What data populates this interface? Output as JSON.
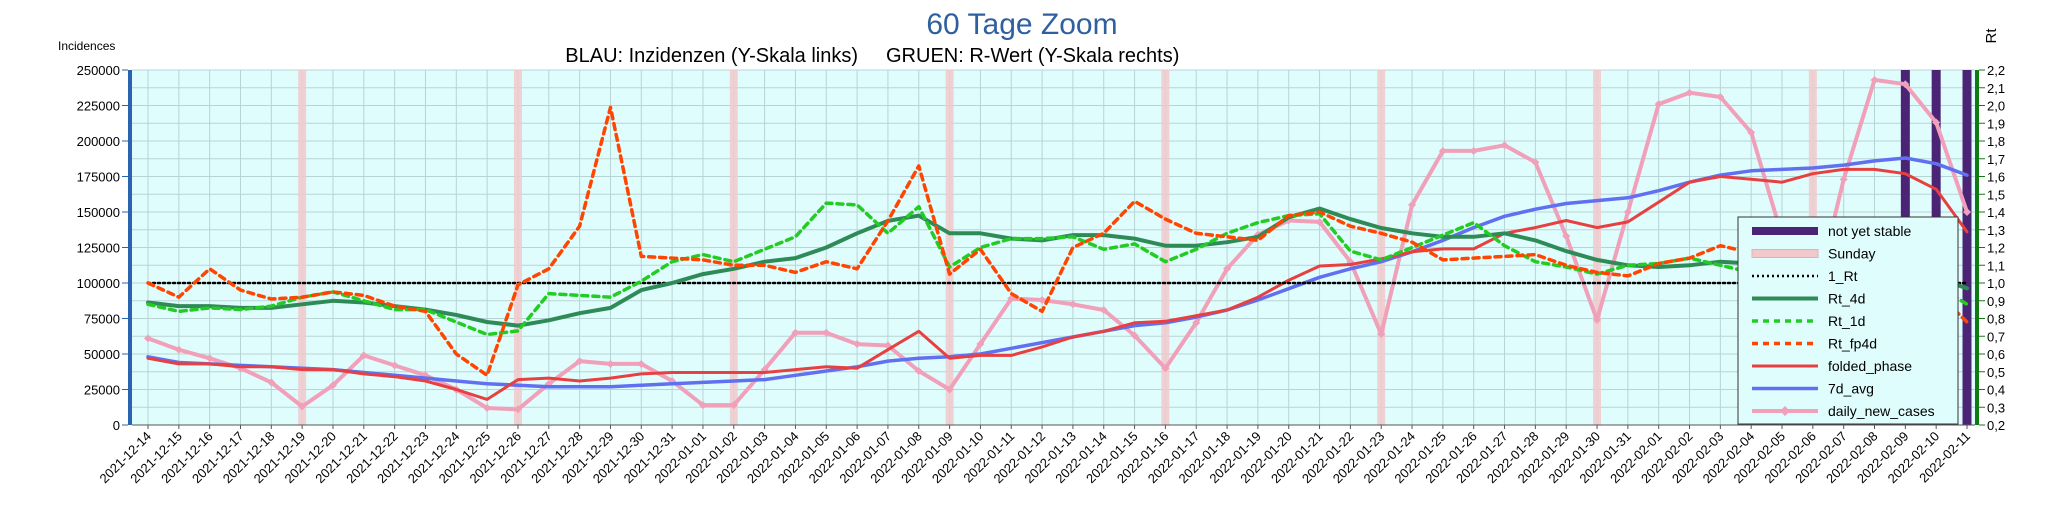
{
  "chart_data": {
    "type": "line",
    "title": "60 Tage Zoom",
    "subtitle_left": "BLAU: Inzidenzen (Y-Skala links)",
    "subtitle_right": "GRUEN: R-Wert (Y-Skala rechts)",
    "ylabel_left": "Incidences",
    "ylabel_right": "Rt",
    "ylim_left": [
      0,
      250000
    ],
    "ylim_right": [
      0.2,
      2.2
    ],
    "yticks_left": [
      "0",
      "25000",
      "50000",
      "75000",
      "100000",
      "125000",
      "150000",
      "175000",
      "200000",
      "225000",
      "250000"
    ],
    "yticks_right": [
      "0,2",
      "0,3",
      "0,4",
      "0,5",
      "0,6",
      "0,7",
      "0,8",
      "0,9",
      "1,0",
      "1,1",
      "1,2",
      "1,3",
      "1,4",
      "1,5",
      "1,6",
      "1,7",
      "1,8",
      "1,9",
      "2,0",
      "2,1",
      "2,2"
    ],
    "x": [
      "2021-12-14",
      "2021-12-15",
      "2021-12-16",
      "2021-12-17",
      "2021-12-18",
      "2021-12-19",
      "2021-12-20",
      "2021-12-21",
      "2021-12-22",
      "2021-12-23",
      "2021-12-24",
      "2021-12-25",
      "2021-12-26",
      "2021-12-27",
      "2021-12-28",
      "2021-12-29",
      "2021-12-30",
      "2021-12-31",
      "2022-01-01",
      "2022-01-02",
      "2022-01-03",
      "2022-01-04",
      "2022-01-05",
      "2022-01-06",
      "2022-01-07",
      "2022-01-08",
      "2022-01-09",
      "2022-01-10",
      "2022-01-11",
      "2022-01-12",
      "2022-01-13",
      "2022-01-14",
      "2022-01-15",
      "2022-01-16",
      "2022-01-17",
      "2022-01-18",
      "2022-01-19",
      "2022-01-20",
      "2022-01-21",
      "2022-01-22",
      "2022-01-23",
      "2022-01-24",
      "2022-01-25",
      "2022-01-26",
      "2022-01-27",
      "2022-01-28",
      "2022-01-29",
      "2022-01-30",
      "2022-01-31",
      "2022-02-01",
      "2022-02-02",
      "2022-02-03",
      "2022-02-04",
      "2022-02-05",
      "2022-02-06",
      "2022-02-07",
      "2022-02-08",
      "2022-02-09",
      "2022-02-10",
      "2022-02-11"
    ],
    "sundays": [
      "2021-12-19",
      "2021-12-26",
      "2022-01-02",
      "2022-01-09",
      "2022-01-16",
      "2022-01-23",
      "2022-01-30",
      "2022-02-06"
    ],
    "not_yet_stable": [
      "2022-02-09",
      "2022-02-10",
      "2022-02-11"
    ],
    "legend": [
      "not yet stable",
      "Sunday",
      "1_Rt",
      "Rt_4d",
      "Rt_1d",
      "Rt_fp4d",
      "folded_phase",
      "7d_avg",
      "daily_new_cases"
    ],
    "legend_position": "right",
    "grid": true,
    "series": [
      {
        "name": "daily_new_cases",
        "axis": "left",
        "color": "#f0a0b8",
        "values": [
          61000,
          53000,
          47000,
          40000,
          30000,
          13000,
          28000,
          49000,
          42000,
          35000,
          25000,
          12000,
          11000,
          29000,
          45000,
          43000,
          43000,
          31000,
          14000,
          14000,
          39000,
          65000,
          65000,
          57000,
          56000,
          38000,
          25000,
          57000,
          89000,
          88000,
          85000,
          81000,
          63000,
          40000,
          72000,
          110000,
          134000,
          144000,
          143000,
          115000,
          64000,
          155000,
          193000,
          193000,
          197000,
          185000,
          133000,
          74000,
          150000,
          226000,
          234000,
          231000,
          206000,
          133000,
          83000,
          173000,
          243000,
          240000,
          213000,
          150000
        ]
      },
      {
        "name": "7d_avg",
        "axis": "left",
        "color": "#6070f0",
        "values": [
          48000,
          44000,
          43000,
          42000,
          41000,
          40000,
          39000,
          37000,
          35000,
          33000,
          31000,
          29000,
          28000,
          27000,
          27000,
          27000,
          28000,
          29000,
          30000,
          31000,
          32000,
          35000,
          38000,
          41000,
          45000,
          47000,
          48000,
          50000,
          54000,
          58000,
          62000,
          66000,
          70000,
          72000,
          76000,
          81000,
          88000,
          96000,
          104000,
          110000,
          115000,
          122000,
          130000,
          139000,
          147000,
          152000,
          156000,
          158000,
          160000,
          165000,
          171000,
          176000,
          179000,
          180000,
          181000,
          183000,
          186000,
          188000,
          184000,
          176000
        ]
      },
      {
        "name": "folded_phase",
        "axis": "left",
        "color": "#e84040",
        "values": [
          47000,
          43000,
          43000,
          41000,
          41000,
          39000,
          39000,
          36000,
          34000,
          31000,
          25000,
          18000,
          32000,
          33000,
          31000,
          33000,
          36000,
          37000,
          37000,
          37000,
          37000,
          39000,
          41000,
          40000,
          53000,
          66000,
          47000,
          49000,
          49000,
          55000,
          62000,
          66000,
          72000,
          73000,
          77000,
          81000,
          90000,
          102000,
          112000,
          113000,
          117000,
          122000,
          124000,
          124000,
          135000,
          139000,
          144000,
          139000,
          143000,
          157000,
          171000,
          175000,
          173000,
          171000,
          177000,
          180000,
          180000,
          177000,
          166000,
          136000
        ]
      },
      {
        "name": "1_Rt",
        "axis": "right",
        "color": "#000000",
        "values": [
          1.0,
          1.0,
          1.0,
          1.0,
          1.0,
          1.0,
          1.0,
          1.0,
          1.0,
          1.0,
          1.0,
          1.0,
          1.0,
          1.0,
          1.0,
          1.0,
          1.0,
          1.0,
          1.0,
          1.0,
          1.0,
          1.0,
          1.0,
          1.0,
          1.0,
          1.0,
          1.0,
          1.0,
          1.0,
          1.0,
          1.0,
          1.0,
          1.0,
          1.0,
          1.0,
          1.0,
          1.0,
          1.0,
          1.0,
          1.0,
          1.0,
          1.0,
          1.0,
          1.0,
          1.0,
          1.0,
          1.0,
          1.0,
          1.0,
          1.0,
          1.0,
          1.0,
          1.0,
          1.0,
          1.0,
          1.0,
          1.0,
          1.0,
          1.0,
          1.0
        ]
      },
      {
        "name": "Rt_4d",
        "axis": "right",
        "color": "#2e8b57",
        "values": [
          0.89,
          0.87,
          0.87,
          0.86,
          0.86,
          0.88,
          0.9,
          0.89,
          0.87,
          0.85,
          0.82,
          0.78,
          0.76,
          0.79,
          0.83,
          0.86,
          0.96,
          1.0,
          1.05,
          1.08,
          1.12,
          1.14,
          1.2,
          1.28,
          1.35,
          1.38,
          1.28,
          1.28,
          1.25,
          1.24,
          1.27,
          1.27,
          1.25,
          1.21,
          1.21,
          1.23,
          1.26,
          1.37,
          1.42,
          1.36,
          1.31,
          1.28,
          1.26,
          1.26,
          1.28,
          1.24,
          1.18,
          1.13,
          1.1,
          1.09,
          1.1,
          1.12,
          1.11,
          1.09,
          1.07,
          1.06,
          1.06,
          1.04,
          1.03,
          0.97
        ]
      },
      {
        "name": "Rt_1d",
        "axis": "right",
        "color": "#22cc22",
        "values": [
          0.88,
          0.84,
          0.86,
          0.85,
          0.87,
          0.92,
          0.95,
          0.9,
          0.85,
          0.85,
          0.78,
          0.71,
          0.73,
          0.94,
          0.93,
          0.92,
          1.01,
          1.12,
          1.16,
          1.12,
          1.19,
          1.26,
          1.45,
          1.44,
          1.28,
          1.43,
          1.09,
          1.2,
          1.25,
          1.25,
          1.26,
          1.19,
          1.22,
          1.12,
          1.19,
          1.28,
          1.34,
          1.38,
          1.39,
          1.18,
          1.13,
          1.2,
          1.27,
          1.34,
          1.21,
          1.12,
          1.09,
          1.05,
          1.1,
          1.11,
          1.14,
          1.1,
          1.06,
          1.05,
          1.07,
          1.06,
          1.05,
          1.03,
          0.99,
          0.88
        ]
      },
      {
        "name": "Rt_fp4d",
        "axis": "right",
        "color": "#ff4500",
        "values": [
          1.0,
          0.92,
          1.08,
          0.96,
          0.91,
          0.92,
          0.95,
          0.93,
          0.87,
          0.84,
          0.6,
          0.48,
          0.99,
          1.08,
          1.32,
          1.99,
          1.15,
          1.14,
          1.13,
          1.1,
          1.1,
          1.06,
          1.12,
          1.08,
          1.35,
          1.66,
          1.05,
          1.19,
          0.94,
          0.84,
          1.2,
          1.28,
          1.46,
          1.36,
          1.28,
          1.26,
          1.24,
          1.38,
          1.4,
          1.32,
          1.28,
          1.23,
          1.13,
          1.14,
          1.15,
          1.16,
          1.1,
          1.06,
          1.04,
          1.11,
          1.14,
          1.21,
          1.17,
          1.07,
          1.05,
          1.05,
          1.06,
          1.02,
          0.95,
          0.78
        ]
      }
    ]
  }
}
